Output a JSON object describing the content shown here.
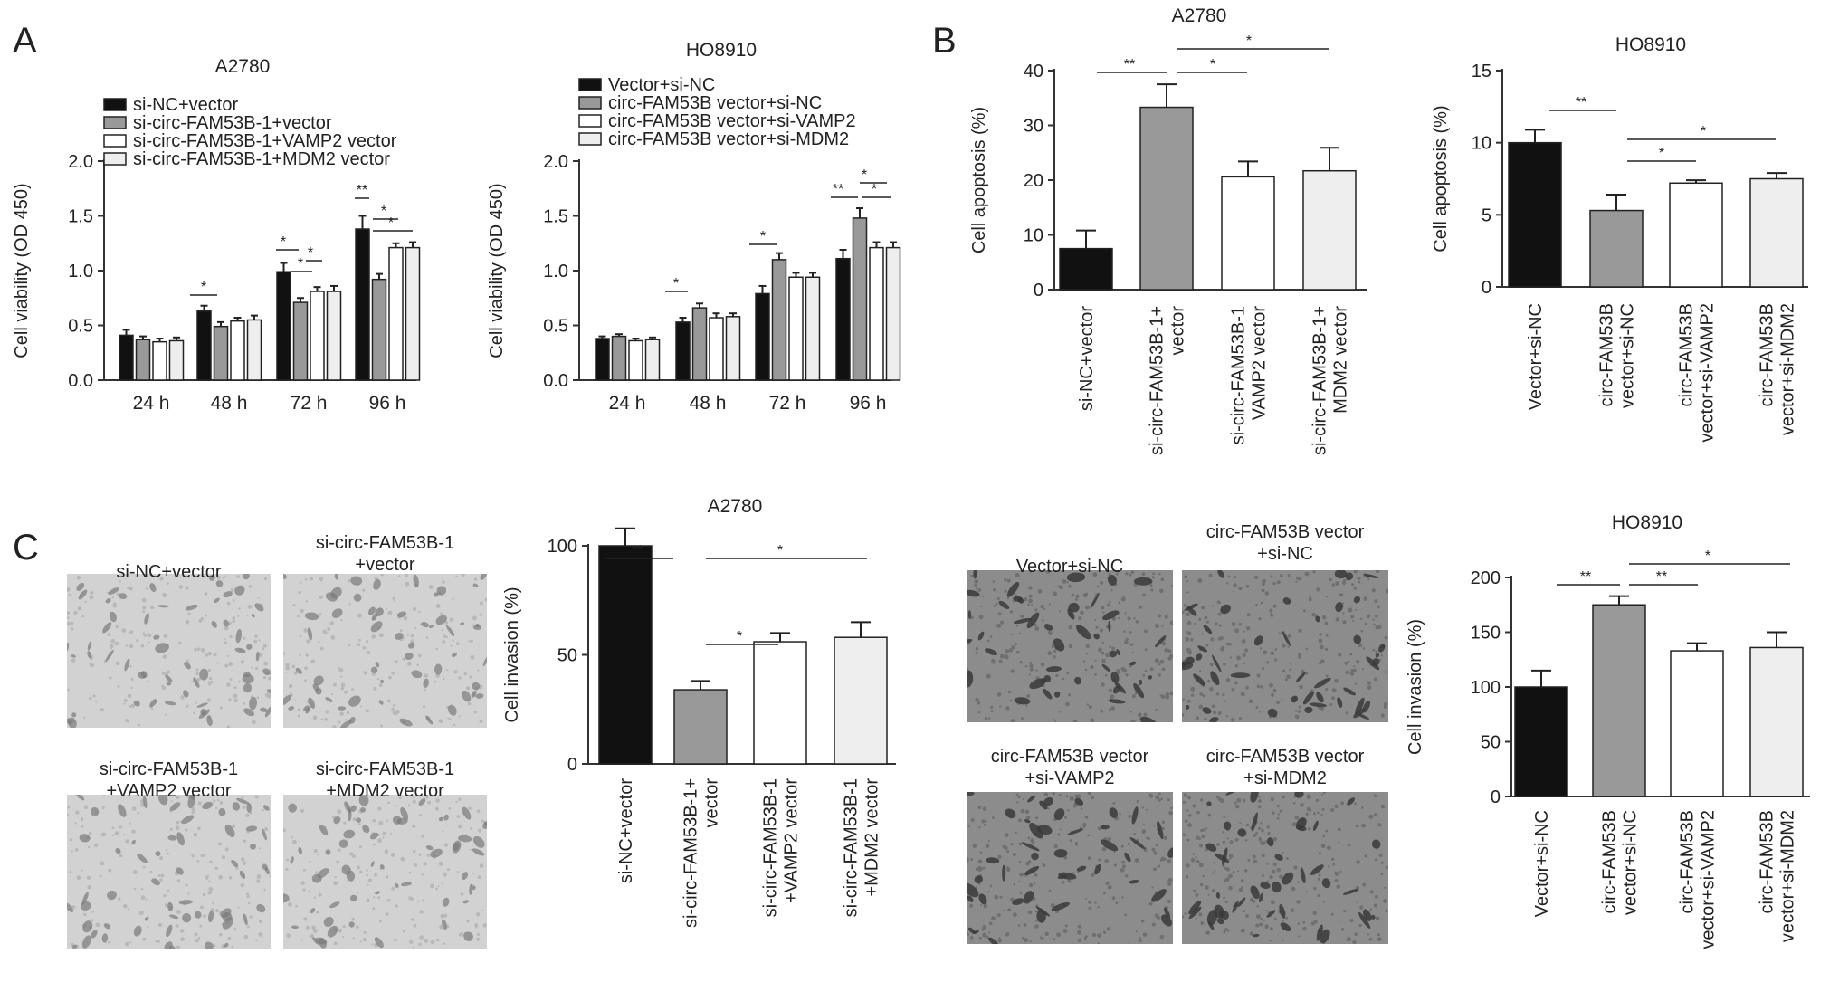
{
  "panel_labels": [
    "A",
    "B",
    "C"
  ],
  "colors": {
    "black": "#111111",
    "gray": "#999999",
    "white": "#ffffff",
    "light": "#eeeeee",
    "axis": "#333333",
    "micro_light_bg": "#d2d2d2",
    "micro_dark_bg": "#8c8c8c",
    "cell_dark": "#3a3a3a"
  },
  "chart_data": [
    {
      "id": "A1",
      "type": "bar",
      "title": "A2780",
      "ylabel": "Cell viability (OD 450)",
      "xlabel": "",
      "ylim": [
        0,
        2.0
      ],
      "yticks": [
        "0.0",
        "0.5",
        "1.0",
        "1.5",
        "2.0"
      ],
      "categories": [
        "24 h",
        "48 h",
        "72 h",
        "96 h"
      ],
      "series": [
        {
          "name": "si-NC+vector",
          "color": "black",
          "values": [
            0.41,
            0.63,
            0.99,
            1.38
          ],
          "errors": [
            0.05,
            0.05,
            0.08,
            0.12
          ]
        },
        {
          "name": "si-circ-FAM53B-1+vector",
          "color": "gray",
          "values": [
            0.37,
            0.49,
            0.71,
            0.92
          ],
          "errors": [
            0.03,
            0.04,
            0.04,
            0.05
          ]
        },
        {
          "name": "si-circ-FAM53B-1+VAMP2 vector",
          "color": "white",
          "values": [
            0.35,
            0.54,
            0.81,
            1.21
          ],
          "errors": [
            0.03,
            0.03,
            0.04,
            0.04
          ]
        },
        {
          "name": "si-circ-FAM53B-1+MDM2 vector",
          "color": "light",
          "values": [
            0.36,
            0.55,
            0.81,
            1.21
          ],
          "errors": [
            0.03,
            0.04,
            0.05,
            0.05
          ]
        }
      ],
      "annotations": [
        "*",
        "**",
        "*",
        "*",
        "*",
        "*",
        "*"
      ]
    },
    {
      "id": "A2",
      "type": "bar",
      "title": "HO8910",
      "ylabel": "Cell viability (OD 450)",
      "xlabel": "",
      "ylim": [
        0,
        2.0
      ],
      "yticks": [
        "0.0",
        "0.5",
        "1.0",
        "1.5",
        "2.0"
      ],
      "categories": [
        "24 h",
        "48 h",
        "72 h",
        "96 h"
      ],
      "series": [
        {
          "name": "Vector+si-NC",
          "color": "black",
          "values": [
            0.38,
            0.53,
            0.79,
            1.11
          ],
          "errors": [
            0.02,
            0.04,
            0.07,
            0.08
          ]
        },
        {
          "name": "circ-FAM53B vector+si-NC",
          "color": "gray",
          "values": [
            0.4,
            0.66,
            1.1,
            1.48
          ],
          "errors": [
            0.02,
            0.04,
            0.06,
            0.09
          ]
        },
        {
          "name": "circ-FAM53B vector+si-VAMP2",
          "color": "white",
          "values": [
            0.36,
            0.57,
            0.94,
            1.21
          ],
          "errors": [
            0.02,
            0.04,
            0.04,
            0.05
          ]
        },
        {
          "name": "circ-FAM53B vector+si-MDM2",
          "color": "light",
          "values": [
            0.37,
            0.58,
            0.94,
            1.21
          ],
          "errors": [
            0.02,
            0.03,
            0.04,
            0.05
          ]
        }
      ],
      "annotations": [
        "*",
        "*",
        "**",
        "*",
        "*"
      ]
    },
    {
      "id": "B1",
      "type": "bar",
      "title": "A2780",
      "ylabel": "Cell apoptosis (%)",
      "xlabel": "",
      "ylim": [
        0,
        40
      ],
      "yticks": [
        "0",
        "10",
        "20",
        "30",
        "40"
      ],
      "categories": [
        "si-NC+vector",
        "si-circ-FAM53B-1+\nvector",
        "si-circ-FAM53B-1\nVAMP2 vector",
        "si-circ-FAM53B-1+\nMDM2 vector"
      ],
      "values": [
        7.5,
        33.3,
        20.6,
        21.7
      ],
      "errors": [
        3.3,
        4.2,
        2.8,
        4.2
      ],
      "colors": [
        "black",
        "gray",
        "white",
        "light"
      ],
      "annotations": [
        "**",
        "*",
        "*"
      ]
    },
    {
      "id": "B2",
      "type": "bar",
      "title": "HO8910",
      "ylabel": "Cell apoptosis (%)",
      "xlabel": "",
      "ylim": [
        0,
        15
      ],
      "yticks": [
        "0",
        "5",
        "10",
        "15"
      ],
      "categories": [
        "Vector+si-NC",
        "circ-FAM53B\nvector+si-NC",
        "circ-FAM53B\nvector+si-VAMP2",
        "circ-FAM53B\nvector+si-MDM2"
      ],
      "values": [
        10.0,
        5.3,
        7.2,
        7.5
      ],
      "errors": [
        0.9,
        1.1,
        0.2,
        0.4
      ],
      "colors": [
        "black",
        "gray",
        "white",
        "light"
      ],
      "annotations": [
        "**",
        "*",
        "*"
      ]
    },
    {
      "id": "C1",
      "type": "bar",
      "title": "A2780",
      "ylabel": "Cell invasion (%)",
      "xlabel": "",
      "ylim": [
        0,
        110
      ],
      "yticks": [
        "0",
        "50",
        "100"
      ],
      "categories": [
        "si-NC+vector",
        "si-circ-FAM53B-1+\nvector",
        "si-circ-FAM53B-1\n+VAMP2 vector",
        "si-circ-FAM53B-1\n+MDM2 vector"
      ],
      "values": [
        100,
        34,
        56,
        58
      ],
      "errors": [
        8,
        4,
        4,
        7
      ],
      "colors": [
        "black",
        "gray",
        "white",
        "light"
      ],
      "annotations": [
        "**",
        "*",
        "*"
      ]
    },
    {
      "id": "C2",
      "type": "bar",
      "title": "HO8910",
      "ylabel": "Cell invasion (%)",
      "xlabel": "",
      "ylim": [
        0,
        200
      ],
      "yticks": [
        "0",
        "50",
        "100",
        "150",
        "200"
      ],
      "categories": [
        "Vector+si-NC",
        "circ-FAM53B\nvector+si-NC",
        "circ-FAM53B\nvector+si-VAMP2",
        "circ-FAM53B\nvector+si-MDM2"
      ],
      "values": [
        100,
        175,
        133,
        136
      ],
      "errors": [
        15,
        8,
        7,
        14
      ],
      "colors": [
        "black",
        "gray",
        "white",
        "light"
      ],
      "annotations": [
        "**",
        "**",
        "*"
      ]
    }
  ],
  "micrographs": [
    {
      "caption": "si-NC+vector",
      "tone": "light"
    },
    {
      "caption": "si-circ-FAM53B-1\n+vector",
      "tone": "light"
    },
    {
      "caption": "si-circ-FAM53B-1\n+VAMP2 vector",
      "tone": "light"
    },
    {
      "caption": "si-circ-FAM53B-1\n+MDM2 vector",
      "tone": "light"
    },
    {
      "caption": "Vector+si-NC",
      "tone": "dark"
    },
    {
      "caption": "circ-FAM53B vector\n+si-NC",
      "tone": "dark"
    },
    {
      "caption": "circ-FAM53B vector\n+si-VAMP2",
      "tone": "dark"
    },
    {
      "caption": "circ-FAM53B vector\n+si-MDM2",
      "tone": "dark"
    }
  ]
}
